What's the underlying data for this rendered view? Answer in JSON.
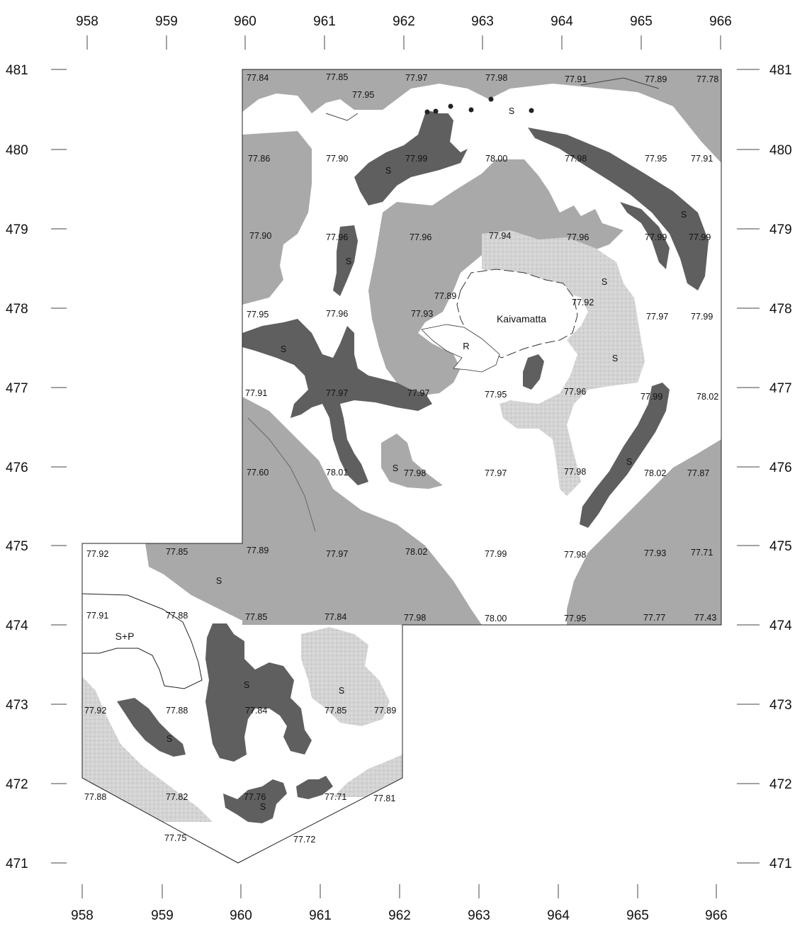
{
  "axes": {
    "x_labels_top": [
      "958",
      "959",
      "960",
      "961",
      "962",
      "963",
      "964",
      "965",
      "966"
    ],
    "x_labels_bottom": [
      "958",
      "959",
      "960",
      "961",
      "962",
      "963",
      "964",
      "965",
      "966"
    ],
    "y_labels_left": [
      "481",
      "480",
      "479",
      "478",
      "477",
      "476",
      "475",
      "474",
      "473",
      "472",
      "471"
    ],
    "y_labels_right": [
      "481",
      "480",
      "479",
      "478",
      "477",
      "476",
      "475",
      "474",
      "473",
      "472",
      "471"
    ]
  },
  "place_labels": {
    "lake": "Kaivamatta",
    "r": "R",
    "s_plus_p": "S+P",
    "s": "S"
  },
  "elevations": [
    "77.84",
    "77.85",
    "77.97",
    "77.98",
    "77.91",
    "77.89",
    "77.78",
    "77.95",
    "77.86",
    "77.90",
    "77.99",
    "78.00",
    "77.98",
    "77.95",
    "77.91",
    "77.90",
    "77.96",
    "77.96",
    "77.94",
    "77.96",
    "77.99",
    "77.99",
    "77.89",
    "77.92",
    "77.95",
    "77.96",
    "77.93",
    "77.97",
    "77.99",
    "77.91",
    "77.97",
    "77.97",
    "77.95",
    "77.96",
    "77.99",
    "78.02",
    "77.60",
    "78.01",
    "77.98",
    "77.97",
    "77.98",
    "78.02",
    "77.87",
    "77.92",
    "77.85",
    "77.89",
    "77.97",
    "78.02",
    "77.99",
    "77.98",
    "77.93",
    "77.71",
    "77.91",
    "77.88",
    "77.85",
    "77.84",
    "77.98",
    "78.00",
    "77.95",
    "77.77",
    "77.43",
    "77.92",
    "77.88",
    "77.84",
    "77.85",
    "77.89",
    "77.88",
    "77.82",
    "77.76",
    "77.71",
    "77.81",
    "77.75",
    "77.72"
  ],
  "colors": {
    "unit_dark": "#5f5f5f",
    "unit_medium": "#a9a9a9",
    "unit_light": "#d4d4d4",
    "ink": "#111111",
    "background": "#ffffff"
  }
}
